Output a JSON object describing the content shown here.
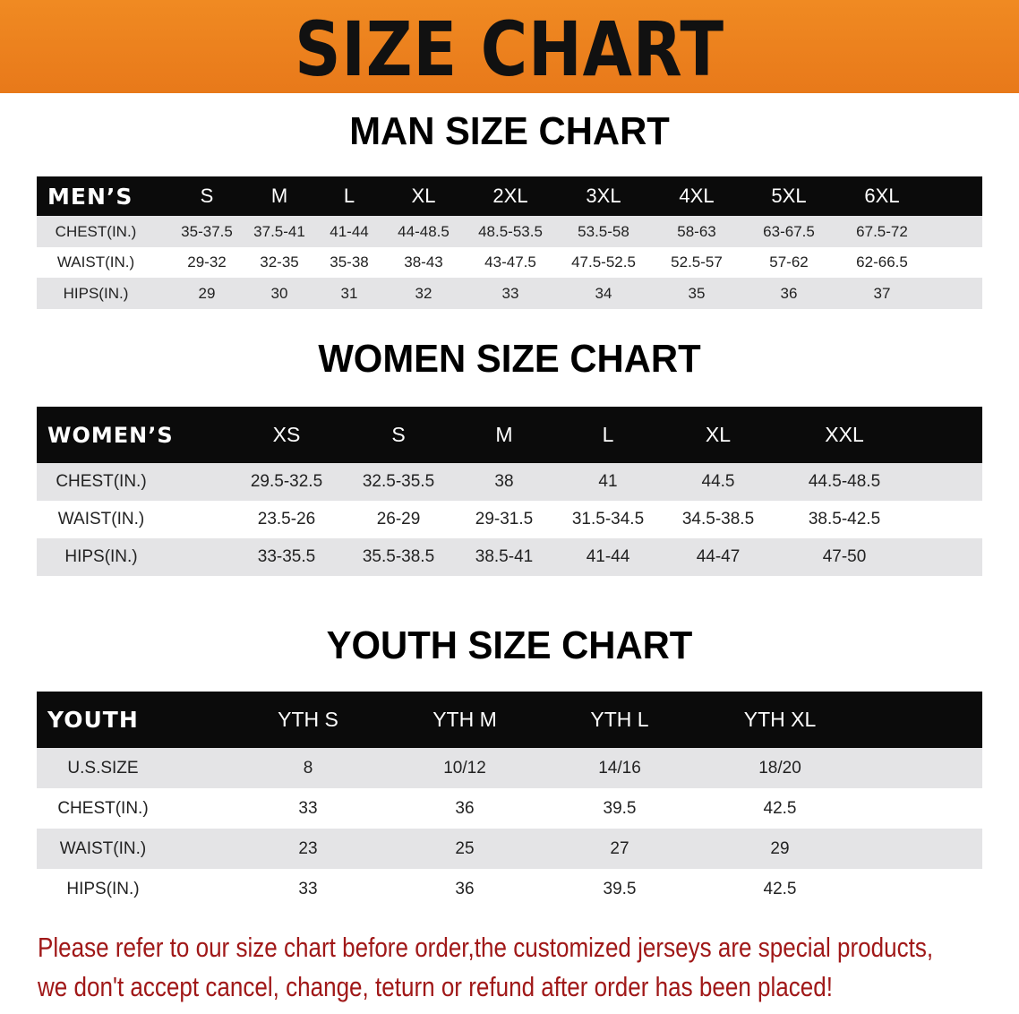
{
  "banner": {
    "title": "SIZE CHART",
    "color": "#ec8320"
  },
  "men": {
    "title": "MAN SIZE CHART",
    "header": [
      "MEN’S",
      "S",
      "M",
      "L",
      "XL",
      "2XL",
      "3XL",
      "4XL",
      "5XL",
      "6XL"
    ],
    "rows": [
      [
        "CHEST(IN.)",
        "35-37.5",
        "37.5-41",
        "41-44",
        "44-48.5",
        "48.5-53.5",
        "53.5-58",
        "58-63",
        "63-67.5",
        "67.5-72"
      ],
      [
        "WAIST(IN.)",
        "29-32",
        "32-35",
        "35-38",
        "38-43",
        "43-47.5",
        "47.5-52.5",
        "52.5-57",
        "57-62",
        "62-66.5"
      ],
      [
        "HIPS(IN.)",
        "29",
        "30",
        "31",
        "32",
        "33",
        "34",
        "35",
        "36",
        "37"
      ]
    ]
  },
  "women": {
    "title": "WOMEN SIZE CHART",
    "header": [
      "WOMEN’S",
      "XS",
      "S",
      "M",
      "L",
      "XL",
      "XXL"
    ],
    "rows": [
      [
        "CHEST(IN.)",
        "29.5-32.5",
        "32.5-35.5",
        "38",
        "41",
        "44.5",
        "44.5-48.5"
      ],
      [
        "WAIST(IN.)",
        "23.5-26",
        "26-29",
        "29-31.5",
        "31.5-34.5",
        "34.5-38.5",
        "38.5-42.5"
      ],
      [
        "HIPS(IN.)",
        "33-35.5",
        "35.5-38.5",
        "38.5-41",
        "41-44",
        "44-47",
        "47-50"
      ]
    ]
  },
  "youth": {
    "title": "YOUTH SIZE CHART",
    "header": [
      "YOUTH",
      "YTH S",
      "YTH M",
      "YTH L",
      "YTH XL"
    ],
    "rows": [
      [
        "U.S.SIZE",
        "8",
        "10/12",
        "14/16",
        "18/20"
      ],
      [
        "CHEST(IN.)",
        "33",
        "36",
        "39.5",
        "42.5"
      ],
      [
        "WAIST(IN.)",
        "23",
        "25",
        "27",
        "29"
      ],
      [
        "HIPS(IN.)",
        "33",
        "36",
        "39.5",
        "42.5"
      ]
    ]
  },
  "note": {
    "line1": "Please refer to our size chart before order,the customized jerseys are special products,",
    "line2": "we don't accept cancel, change, teturn or refund after order has been placed!",
    "color": "#a01818"
  }
}
